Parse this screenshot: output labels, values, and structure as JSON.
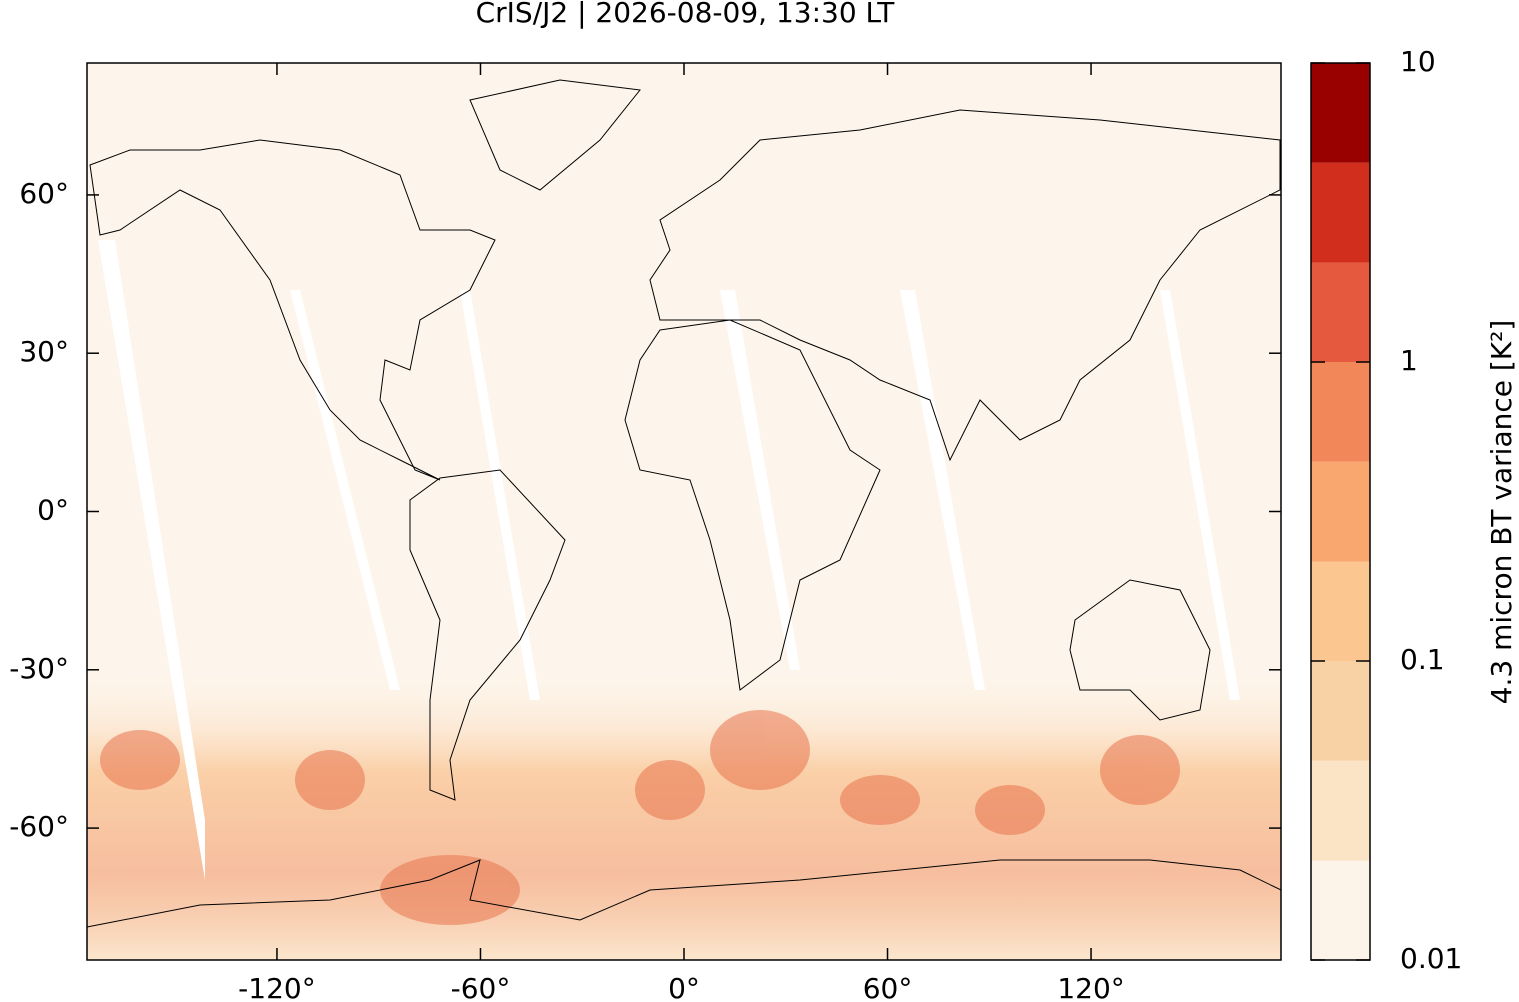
{
  "chart_data": {
    "type": "map",
    "title": "CrIS/J2 | 2026-08-09, 13:30 LT",
    "xlim": [
      -176,
      176
    ],
    "ylim": [
      -85,
      85
    ],
    "xticks": [
      {
        "value": -120,
        "label": "-120°"
      },
      {
        "value": -60,
        "label": "-60°"
      },
      {
        "value": 0,
        "label": "0°"
      },
      {
        "value": 60,
        "label": "60°"
      },
      {
        "value": 120,
        "label": "120°"
      }
    ],
    "yticks": [
      {
        "value": -60,
        "label": "-60°"
      },
      {
        "value": -30,
        "label": "-30°"
      },
      {
        "value": 0,
        "label": "0°"
      },
      {
        "value": 30,
        "label": "30°"
      },
      {
        "value": 60,
        "label": "60°"
      }
    ],
    "colorbar": {
      "label": "4.3 micron BT variance [K²]",
      "scale": "log",
      "lim": [
        0.01,
        10
      ],
      "ticks": [
        0.01,
        0.1,
        1,
        10
      ],
      "levels": [
        0.01,
        0.0215,
        0.0464,
        0.1,
        0.215,
        0.464,
        1,
        2.15,
        4.64,
        10
      ],
      "colors": [
        "#fdf4e9",
        "#fbe3c6",
        "#f8d2a4",
        "#fbc690",
        "#f9a66f",
        "#f2875a",
        "#e55a3f",
        "#d22e1e",
        "#990000"
      ]
    }
  }
}
